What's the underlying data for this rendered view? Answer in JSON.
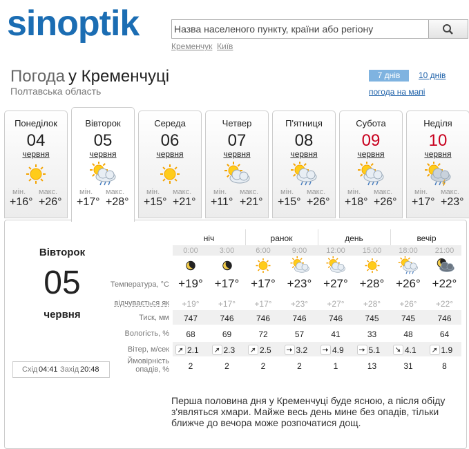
{
  "header": {
    "logo": "sinoptik",
    "search_placeholder": "Назва населеного пункту, країни або регіону",
    "recent": [
      "Кременчук",
      "Київ"
    ]
  },
  "title": {
    "prefix": "Погода",
    "city": "у Кременчуці",
    "region": "Полтавська область"
  },
  "tabs": {
    "days7": "7 днів",
    "days10": "10 днів",
    "map": "погода на мапі"
  },
  "days": [
    {
      "weekday": "Понеділок",
      "date": "04",
      "month": "червня",
      "min_label": "мін.",
      "max_label": "макс.",
      "min": "+16°",
      "max": "+26°"
    },
    {
      "weekday": "Вівторок",
      "date": "05",
      "month": "червня",
      "min_label": "мін.",
      "max_label": "макс.",
      "min": "+17°",
      "max": "+28°"
    },
    {
      "weekday": "Середа",
      "date": "06",
      "month": "червня",
      "min_label": "мін.",
      "max_label": "макс.",
      "min": "+15°",
      "max": "+21°"
    },
    {
      "weekday": "Четвер",
      "date": "07",
      "month": "червня",
      "min_label": "мін.",
      "max_label": "макс.",
      "min": "+11°",
      "max": "+21°"
    },
    {
      "weekday": "П'ятниця",
      "date": "08",
      "month": "червня",
      "min_label": "мін.",
      "max_label": "макс.",
      "min": "+15°",
      "max": "+26°"
    },
    {
      "weekday": "Субота",
      "date": "09",
      "month": "червня",
      "min_label": "мін.",
      "max_label": "макс.",
      "min": "+18°",
      "max": "+26°"
    },
    {
      "weekday": "Неділя",
      "date": "10",
      "month": "червня",
      "min_label": "мін.",
      "max_label": "макс.",
      "min": "+17°",
      "max": "+23°"
    }
  ],
  "detail": {
    "weekday": "Вівторок",
    "date": "05",
    "month": "червня",
    "sunrise_label": "Схід",
    "sunrise": "04:41",
    "sunset_label": "Захід",
    "sunset": "20:48",
    "periods": [
      "ніч",
      "ранок",
      "день",
      "вечір"
    ],
    "times": [
      "0:00",
      "3:00",
      "6:00",
      "9:00",
      "12:00",
      "15:00",
      "18:00",
      "21:00"
    ],
    "rows": [
      {
        "label": "Температура, °C",
        "values": [
          "+19°",
          "+17°",
          "+17°",
          "+23°",
          "+27°",
          "+28°",
          "+26°",
          "+22°"
        ]
      },
      {
        "label": "відчувається як",
        "values": [
          "+19°",
          "+17°",
          "+17°",
          "+23°",
          "+27°",
          "+28°",
          "+26°",
          "+22°"
        ]
      },
      {
        "label": "Тиск, мм",
        "values": [
          747,
          746,
          746,
          746,
          746,
          745,
          745,
          746
        ]
      },
      {
        "label": "Вологість, %",
        "values": [
          68,
          69,
          72,
          57,
          41,
          33,
          48,
          64
        ]
      },
      {
        "label": "Вітер, м/сек",
        "values": [
          2.1,
          2.3,
          2.5,
          3.2,
          4.9,
          5.1,
          4.1,
          1.9
        ]
      },
      {
        "label": "Ймовірність опадів, %",
        "values": [
          2,
          2,
          2,
          2,
          1,
          13,
          31,
          8
        ]
      }
    ],
    "description": "Перша половина дня у Кременчуці буде ясною, а після обіду з'являться хмари. Майже весь день мине без опадів, тільки ближче до вечора може розпочатися дощ."
  }
}
